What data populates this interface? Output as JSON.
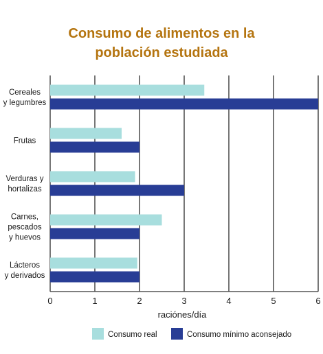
{
  "chart_data": {
    "type": "bar",
    "orientation": "horizontal",
    "title_lines": [
      "Consumo de alimentos en la",
      "población estudiada"
    ],
    "categories": [
      [
        "Cereales",
        "y legumbres"
      ],
      [
        "Frutas"
      ],
      [
        "Verduras y",
        "hortalizas"
      ],
      [
        "Carnes,",
        "pescados",
        "y huevos"
      ],
      [
        "Lácteros",
        "y derivados"
      ]
    ],
    "series": [
      {
        "name": "Consumo real",
        "color": "#a8dede",
        "values": [
          3.45,
          1.6,
          1.9,
          2.5,
          1.95
        ]
      },
      {
        "name": "Consumo mínimo aconsejado",
        "color": "#283d95",
        "values": [
          6,
          2,
          3,
          2,
          2
        ]
      }
    ],
    "xlabel": "raciónes/día",
    "xlim": [
      0,
      6
    ],
    "xticks": [
      "0",
      "1",
      "2",
      "3",
      "4",
      "5",
      "6"
    ],
    "grid": true,
    "legend_position": "bottom"
  }
}
